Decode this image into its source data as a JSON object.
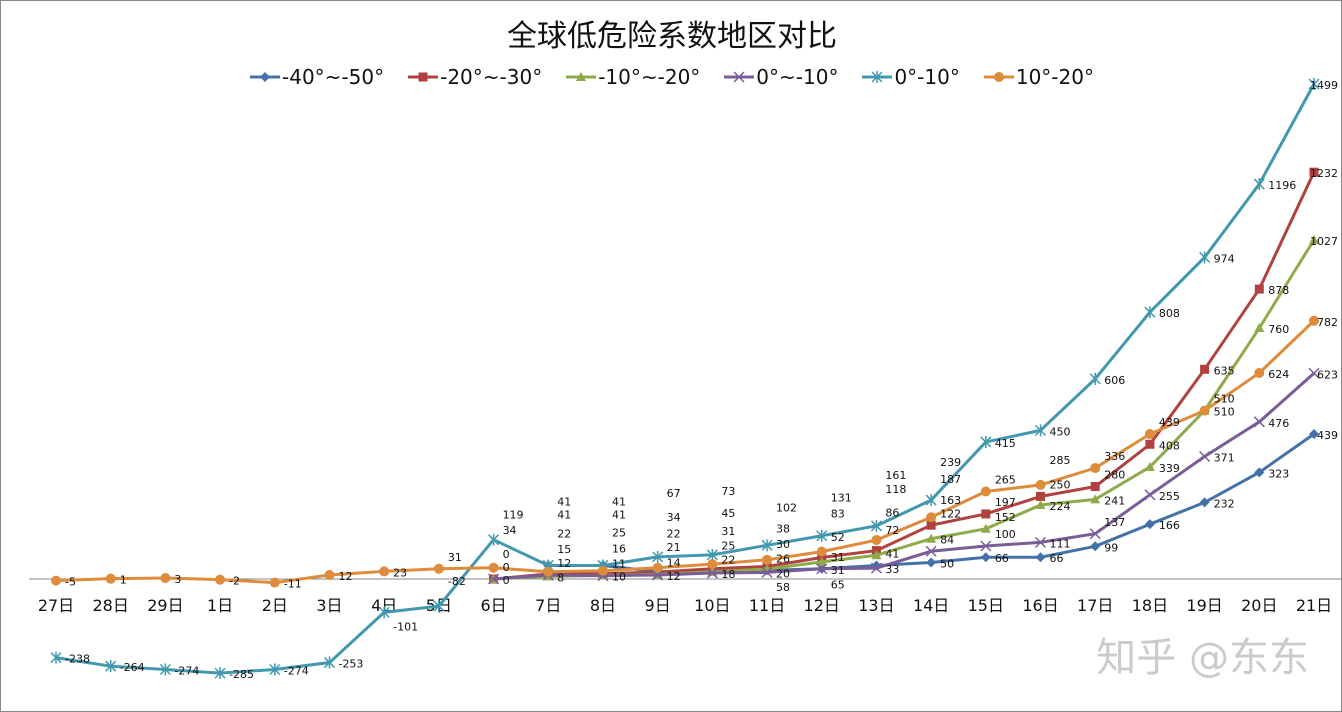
{
  "chart_data": {
    "type": "line",
    "title": "全球低危险系数地区对比",
    "categories": [
      "27日",
      "28日",
      "29日",
      "1日",
      "2日",
      "3日",
      "4日",
      "5日",
      "6日",
      "7日",
      "8日",
      "9日",
      "10日",
      "11日",
      "12日",
      "13日",
      "14日",
      "15日",
      "16日",
      "17日",
      "18日",
      "19日",
      "20日",
      "21日"
    ],
    "legend_position": "top",
    "grid": false,
    "series": [
      {
        "name": "-40°~-50°",
        "color": "#4472a8",
        "marker": "diamond",
        "values": [
          null,
          null,
          null,
          null,
          null,
          null,
          null,
          null,
          null,
          41,
          41,
          22,
          25,
          26,
          31,
          41,
          50,
          66,
          66,
          99,
          166,
          232,
          323,
          439
        ]
      },
      {
        "name": "-20°~-30°",
        "color": "#b0413e",
        "marker": "square",
        "values": [
          null,
          null,
          null,
          null,
          null,
          null,
          null,
          null,
          0,
          15,
          16,
          21,
          31,
          38,
          65,
          86,
          163,
          197,
          250,
          280,
          408,
          635,
          878,
          1232
        ]
      },
      {
        "name": "-10°~-20°",
        "color": "#8faa4a",
        "marker": "triangle",
        "values": [
          null,
          null,
          null,
          null,
          null,
          null,
          null,
          null,
          0,
          8,
          11,
          14,
          22,
          30,
          52,
          72,
          122,
          152,
          224,
          241,
          339,
          510,
          760,
          1027
        ]
      },
      {
        "name": "0°~-10°",
        "color": "#7a5c96",
        "marker": "x",
        "values": [
          null,
          null,
          null,
          null,
          null,
          null,
          null,
          null,
          0,
          12,
          10,
          12,
          18,
          20,
          31,
          33,
          84,
          100,
          111,
          137,
          255,
          371,
          476,
          623
        ]
      },
      {
        "name": "0°-10°",
        "color": "#4298ae",
        "marker": "asterisk",
        "values": [
          -238,
          -264,
          -274,
          -285,
          -274,
          -253,
          -101,
          -82,
          119,
          41,
          41,
          67,
          73,
          102,
          131,
          161,
          239,
          415,
          450,
          606,
          808,
          974,
          1196,
          1499
        ]
      },
      {
        "name": "10°-20°",
        "color": "#de8b3b",
        "marker": "circle",
        "values": [
          -5,
          1,
          3,
          -2,
          -11,
          12,
          23,
          31,
          34,
          22,
          25,
          34,
          45,
          58,
          83,
          118,
          187,
          265,
          285,
          336,
          439,
          510,
          624,
          782
        ]
      }
    ]
  },
  "watermark": "知乎 @东东"
}
